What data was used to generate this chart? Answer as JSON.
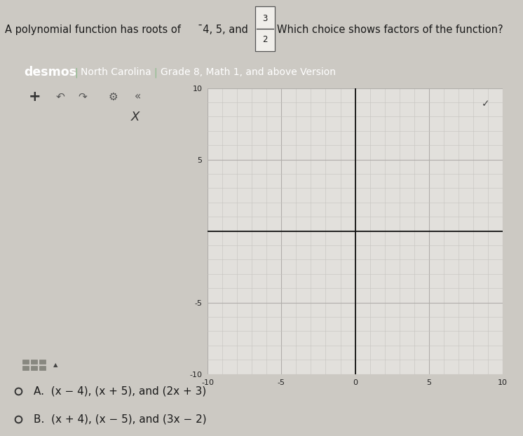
{
  "fraction_num": "3",
  "fraction_den": "2",
  "desmos_label": "desmos",
  "nc_label": "North Carolina",
  "grade_label": "Grade 8, Math 1, and above Version",
  "header_bg_color": "#3e7d3e",
  "header_text_color": "#ffffff",
  "graph_bg_color": "#e2e0dc",
  "graph_axis_color": "#111111",
  "graph_xlim": [
    -10,
    10
  ],
  "graph_ylim": [
    -10,
    10
  ],
  "graph_xticks": [
    -10,
    -5,
    0,
    5,
    10
  ],
  "graph_yticks": [
    -10,
    -5,
    0,
    5,
    10
  ],
  "choice_A": "(x − 4), (x + 5), and (2x + 3)",
  "choice_B": "(x + 4), (x − 5), and (3x − 2)",
  "page_bg_color": "#ccc9c3",
  "sidebar_bg_color": "#d4d1cb",
  "panel_border_color": "#aaaaaa",
  "toolbar_bg_color": "#d4d1cb",
  "graph_minor_color": "#c5c3bf",
  "graph_major_color": "#b0adaa"
}
